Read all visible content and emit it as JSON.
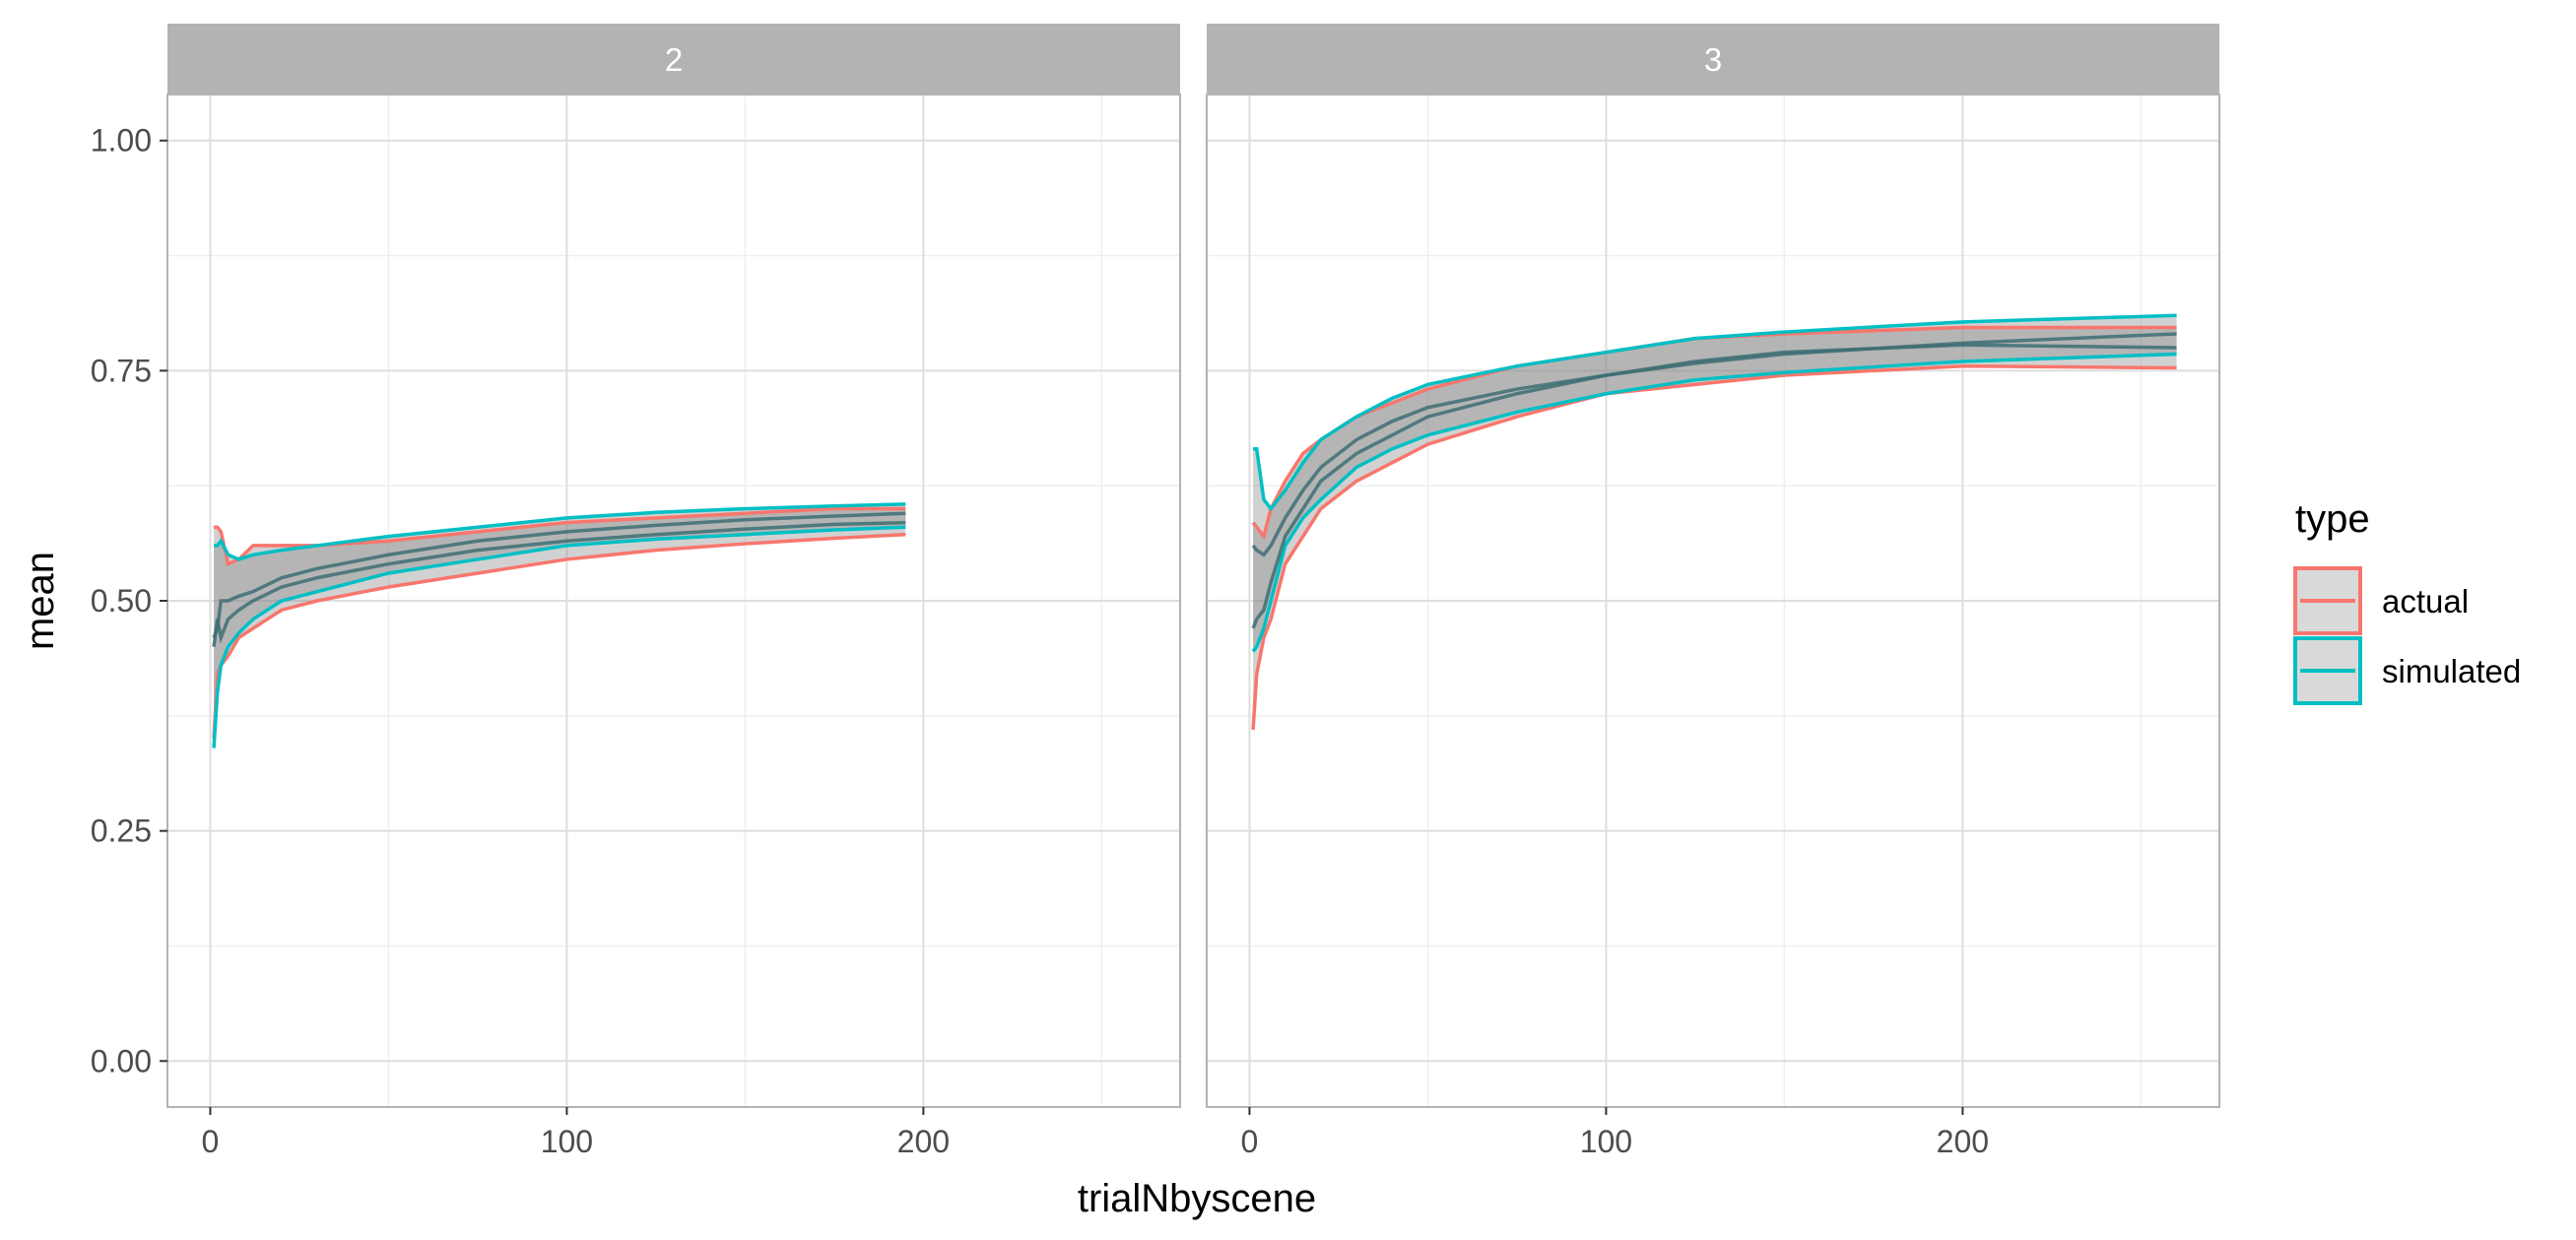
{
  "chart_data": {
    "type": "line",
    "xlabel": "trialNbyscene",
    "ylabel": "mean",
    "xlim": [
      -12,
      272
    ],
    "ylim": [
      -0.05,
      1.05
    ],
    "x_ticks": [
      "0",
      "100",
      "200"
    ],
    "y_ticks": [
      "0.00",
      "0.25",
      "0.50",
      "0.75",
      "1.00"
    ],
    "grid": true,
    "legend": {
      "title": "type",
      "placement": "right",
      "entries": [
        "actual",
        "simulated"
      ]
    },
    "colors": {
      "actual": "#F8766D",
      "simulated": "#00BFC4",
      "ribbon": "#c8c8c8",
      "strip": "#b3b3b3",
      "panel_border": "#b3b3b3",
      "grid_major": "#dedede",
      "grid_minor": "#efefef"
    },
    "panels": [
      {
        "label": "2",
        "series": [
          {
            "name": "actual",
            "x": [
              1,
              2,
              3,
              5,
              8,
              12,
              20,
              30,
              50,
              75,
              100,
              125,
              150,
              175,
              195
            ],
            "mean": [
              0.45,
              0.48,
              0.46,
              0.48,
              0.49,
              0.5,
              0.515,
              0.525,
              0.54,
              0.555,
              0.565,
              0.572,
              0.578,
              0.583,
              0.585
            ],
            "lower": [
              0.35,
              0.42,
              0.43,
              0.44,
              0.46,
              0.47,
              0.49,
              0.5,
              0.515,
              0.53,
              0.545,
              0.555,
              0.562,
              0.568,
              0.572
            ],
            "upper": [
              0.58,
              0.58,
              0.575,
              0.54,
              0.545,
              0.56,
              0.56,
              0.56,
              0.565,
              0.575,
              0.585,
              0.59,
              0.595,
              0.6,
              0.6
            ]
          },
          {
            "name": "simulated",
            "x": [
              1,
              2,
              3,
              5,
              8,
              12,
              20,
              30,
              50,
              75,
              100,
              125,
              150,
              175,
              195
            ],
            "mean": [
              0.46,
              0.47,
              0.5,
              0.5,
              0.505,
              0.51,
              0.525,
              0.535,
              0.55,
              0.565,
              0.575,
              0.582,
              0.588,
              0.592,
              0.595
            ],
            "lower": [
              0.34,
              0.4,
              0.43,
              0.45,
              0.465,
              0.48,
              0.5,
              0.51,
              0.53,
              0.545,
              0.56,
              0.567,
              0.572,
              0.577,
              0.58
            ],
            "upper": [
              0.56,
              0.56,
              0.565,
              0.55,
              0.545,
              0.55,
              0.555,
              0.56,
              0.57,
              0.58,
              0.59,
              0.596,
              0.6,
              0.603,
              0.605
            ]
          }
        ]
      },
      {
        "label": "3",
        "series": [
          {
            "name": "actual",
            "x": [
              1,
              2,
              4,
              6,
              10,
              15,
              20,
              30,
              40,
              50,
              75,
              100,
              125,
              150,
              200,
              260
            ],
            "mean": [
              0.47,
              0.48,
              0.49,
              0.52,
              0.57,
              0.6,
              0.63,
              0.66,
              0.68,
              0.7,
              0.725,
              0.745,
              0.76,
              0.77,
              0.778,
              0.775
            ],
            "lower": [
              0.36,
              0.42,
              0.46,
              0.48,
              0.54,
              0.57,
              0.6,
              0.63,
              0.65,
              0.67,
              0.7,
              0.725,
              0.735,
              0.745,
              0.755,
              0.753
            ],
            "upper": [
              0.585,
              0.58,
              0.57,
              0.6,
              0.63,
              0.66,
              0.675,
              0.7,
              0.715,
              0.73,
              0.755,
              0.77,
              0.785,
              0.79,
              0.797,
              0.797
            ]
          },
          {
            "name": "simulated",
            "x": [
              1,
              2,
              4,
              6,
              10,
              15,
              20,
              30,
              40,
              50,
              75,
              100,
              125,
              150,
              200,
              260
            ],
            "mean": [
              0.56,
              0.555,
              0.55,
              0.56,
              0.59,
              0.62,
              0.645,
              0.675,
              0.695,
              0.71,
              0.73,
              0.745,
              0.758,
              0.768,
              0.78,
              0.79
            ],
            "lower": [
              0.445,
              0.45,
              0.47,
              0.5,
              0.56,
              0.59,
              0.61,
              0.645,
              0.665,
              0.68,
              0.705,
              0.725,
              0.74,
              0.748,
              0.76,
              0.768
            ],
            "upper": [
              0.665,
              0.665,
              0.61,
              0.6,
              0.62,
              0.65,
              0.675,
              0.7,
              0.72,
              0.735,
              0.755,
              0.77,
              0.785,
              0.792,
              0.803,
              0.81
            ]
          }
        ]
      }
    ]
  }
}
